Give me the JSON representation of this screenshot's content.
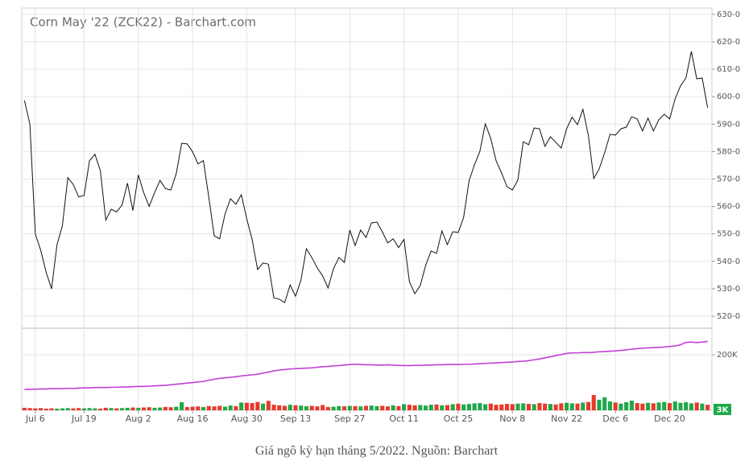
{
  "chart_data": [
    {
      "type": "line",
      "title": "Corn May '22 (ZCK22) - Barchart.com",
      "color": "#111111",
      "grid": true,
      "ylim": [
        516.5,
        632.3
      ],
      "yticks": [
        {
          "value": 520,
          "label": "520-0"
        },
        {
          "value": 530,
          "label": "530-0"
        },
        {
          "value": 540,
          "label": "540-0"
        },
        {
          "value": 550,
          "label": "550-0"
        },
        {
          "value": 560,
          "label": "560-0"
        },
        {
          "value": 570,
          "label": "570-0"
        },
        {
          "value": 580,
          "label": "580-0"
        },
        {
          "value": 590,
          "label": "590-0"
        },
        {
          "value": 600,
          "label": "600-0"
        },
        {
          "value": 610,
          "label": "610-0"
        },
        {
          "value": 620,
          "label": "620-0"
        },
        {
          "value": 630,
          "label": "630-0"
        }
      ],
      "values": [
        598.6,
        590,
        550,
        544,
        536,
        530,
        546,
        553,
        570.5,
        568,
        563.5,
        564,
        576.7,
        579,
        573,
        555,
        559,
        558,
        560.5,
        568.5,
        558.5,
        571.5,
        565,
        560,
        565,
        569.5,
        566.5,
        566,
        572,
        583,
        582.8,
        580,
        575.5,
        576.7,
        563.4,
        549.3,
        548.2,
        557.3,
        562.8,
        560.8,
        564.3,
        555.5,
        547.9,
        537,
        539.4,
        539,
        526.7,
        526.2,
        525,
        531.4,
        527.3,
        533.2,
        544.6,
        541.4,
        537.6,
        534.7,
        530.3,
        537.3,
        541.4,
        539.6,
        551.4,
        545.8,
        551.4,
        548.7,
        554,
        554.3,
        550.8,
        546.7,
        548.2,
        545,
        548,
        532.6,
        528.2,
        531.2,
        538.5,
        543.8,
        542.9,
        551.1,
        546.1,
        550.8,
        550.5,
        556,
        569.3,
        575.2,
        580.1,
        590.1,
        584.8,
        576.6,
        572.2,
        567.2,
        566,
        569.6,
        583.6,
        582.5,
        588.6,
        588.3,
        581.9,
        585.4,
        583.4,
        581.3,
        588.3,
        592.5,
        589.8,
        595.4,
        586,
        570.2,
        573.7,
        579.5,
        586.3,
        586,
        588.3,
        588.9,
        592.7,
        591.9,
        587.5,
        592.2,
        587.5,
        591.6,
        593.6,
        591.9,
        599.2,
        603.9,
        606.8,
        616.5,
        606.5,
        606.8,
        596
      ]
    },
    {
      "type": "bar",
      "grid": true,
      "categories": [
        null,
        null,
        "Jul 6",
        null,
        null,
        null,
        null,
        null,
        null,
        null,
        null,
        "Jul 19",
        null,
        null,
        null,
        null,
        null,
        null,
        null,
        null,
        null,
        "Aug 2",
        null,
        null,
        null,
        null,
        null,
        null,
        null,
        null,
        null,
        "Aug 16",
        null,
        null,
        null,
        null,
        null,
        null,
        null,
        null,
        null,
        "Aug 30",
        null,
        null,
        null,
        null,
        null,
        null,
        null,
        null,
        "Sep 13",
        null,
        null,
        null,
        null,
        null,
        null,
        null,
        null,
        null,
        "Sep 27",
        null,
        null,
        null,
        null,
        null,
        null,
        null,
        null,
        null,
        "Oct 11",
        null,
        null,
        null,
        null,
        null,
        null,
        null,
        null,
        null,
        "Oct 25",
        null,
        null,
        null,
        null,
        null,
        null,
        null,
        null,
        null,
        "Nov 8",
        null,
        null,
        null,
        null,
        null,
        null,
        null,
        null,
        null,
        "Nov 22",
        null,
        null,
        null,
        null,
        null,
        null,
        null,
        null,
        "Dec 6",
        null,
        null,
        null,
        null,
        null,
        null,
        null,
        null,
        null,
        "Dec 20",
        null,
        null,
        null,
        null,
        null,
        null,
        null
      ],
      "ylim": [
        0,
        290000
      ],
      "yticks": [
        {
          "value": 200000,
          "label": "200K"
        }
      ],
      "badge": {
        "value": 3000,
        "label": "3K",
        "color": "#1fa84a"
      },
      "series": [
        {
          "type": "bar",
          "up_color": "#1fa84a",
          "down_color": "#e8392b",
          "values": [
            9000,
            8000,
            7000,
            8000,
            6000,
            7000,
            6000,
            7000,
            8000,
            7000,
            8000,
            7000,
            8000,
            7000,
            6000,
            9000,
            8000,
            7000,
            8000,
            9000,
            10000,
            9000,
            10000,
            11000,
            9000,
            10000,
            12000,
            11000,
            13000,
            29000,
            12000,
            13000,
            14000,
            12000,
            15000,
            14000,
            16000,
            13000,
            17000,
            15000,
            28000,
            27000,
            26000,
            30000,
            24000,
            34000,
            20000,
            18000,
            16000,
            20000,
            18000,
            17000,
            15000,
            16000,
            14000,
            19000,
            12000,
            13000,
            15000,
            14000,
            16000,
            15000,
            14000,
            16000,
            17000,
            15000,
            16000,
            14000,
            18000,
            15000,
            22000,
            20000,
            18000,
            19000,
            17000,
            20000,
            21000,
            18000,
            19000,
            22000,
            24000,
            21000,
            23000,
            25000,
            26000,
            22000,
            24000,
            20000,
            21000,
            23000,
            22000,
            24000,
            25000,
            23000,
            22000,
            26000,
            24000,
            23000,
            21000,
            25000,
            27000,
            25000,
            24000,
            28000,
            30000,
            55000,
            38000,
            47000,
            32000,
            28000,
            24000,
            29000,
            35000,
            26000,
            24000,
            27000,
            25000,
            28000,
            30000,
            26000,
            32000,
            27000,
            29000,
            25000,
            28000,
            24000,
            20000
          ]
        },
        {
          "type": "line",
          "color": "#c23fd6",
          "values": [
            75000,
            76000,
            76000,
            77000,
            77000,
            78000,
            78000,
            78000,
            79000,
            79000,
            80000,
            81000,
            81000,
            82000,
            82000,
            82000,
            83000,
            83000,
            84000,
            84000,
            85000,
            86000,
            86000,
            87000,
            88000,
            89000,
            90000,
            92000,
            94000,
            96000,
            98000,
            100000,
            102000,
            104000,
            108000,
            112000,
            115000,
            117000,
            119000,
            121000,
            124000,
            126000,
            128000,
            130000,
            134000,
            138000,
            142000,
            145000,
            147000,
            149000,
            150000,
            151000,
            152000,
            153000,
            155000,
            157000,
            158000,
            160000,
            161000,
            163000,
            165000,
            166000,
            165000,
            164000,
            164000,
            163000,
            163000,
            164000,
            163000,
            162000,
            161000,
            161000,
            162000,
            162000,
            163000,
            163000,
            164000,
            164000,
            165000,
            165000,
            165000,
            166000,
            166000,
            167000,
            168000,
            169000,
            170000,
            171000,
            172000,
            173000,
            174000,
            176000,
            177000,
            179000,
            182000,
            185000,
            189000,
            193000,
            197000,
            201000,
            205000,
            207000,
            207000,
            208000,
            208000,
            209000,
            211000,
            212000,
            213000,
            214000,
            216000,
            218000,
            220000,
            222000,
            224000,
            225000,
            226000,
            227000,
            228000,
            230000,
            232000,
            236000,
            245000,
            246000,
            244000,
            246000,
            248000
          ]
        }
      ]
    }
  ],
  "caption": "Giá ngô kỳ hạn tháng 5/2022. Nguồn: Barchart"
}
